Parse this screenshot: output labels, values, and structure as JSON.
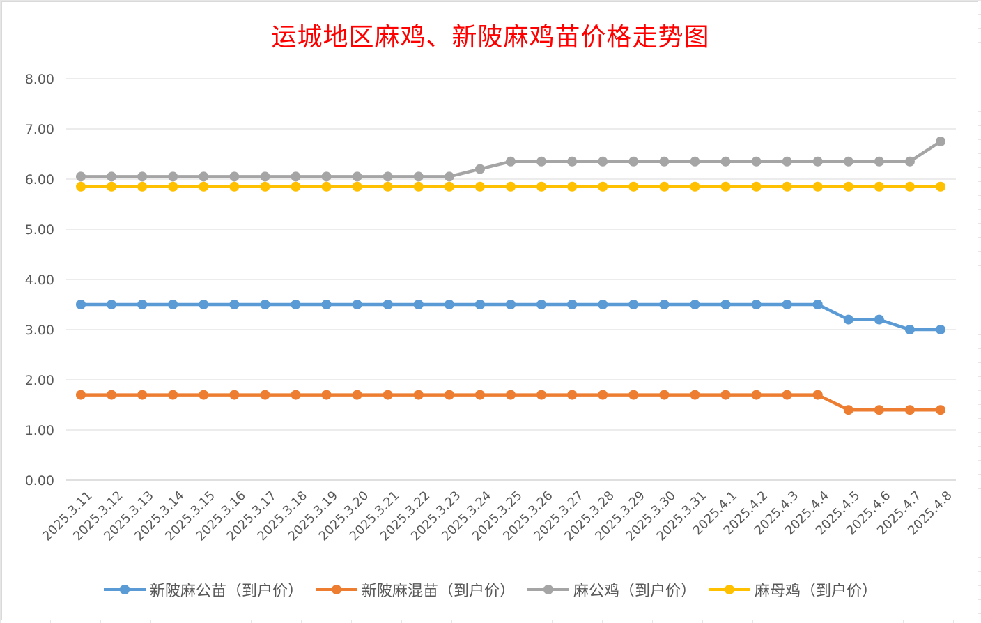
{
  "chart_data": {
    "type": "line",
    "title": "运城地区麻鸡、新陂麻鸡苗价格走势图",
    "xlabel": "",
    "ylabel": "",
    "ylim": [
      0,
      8
    ],
    "y_ticks": [
      "0.00",
      "1.00",
      "2.00",
      "3.00",
      "4.00",
      "5.00",
      "6.00",
      "7.00",
      "8.00"
    ],
    "grid": "horizontal",
    "legend_position": "bottom",
    "categories": [
      "2025.3.11",
      "2025.3.12",
      "2025.3.13",
      "2025.3.14",
      "2025.3.15",
      "2025.3.16",
      "2025.3.17",
      "2025.3.18",
      "2025.3.19",
      "2025.3.20",
      "2025.3.21",
      "2025.3.22",
      "2025.3.23",
      "2025.3.24",
      "2025.3.25",
      "2025.3.26",
      "2025.3.27",
      "2025.3.28",
      "2025.3.29",
      "2025.3.30",
      "2025.3.31",
      "2025.4.1",
      "2025.4.2",
      "2025.4.3",
      "2025.4.4",
      "2025.4.5",
      "2025.4.6",
      "2025.4.7",
      "2025.4.8"
    ],
    "series": [
      {
        "name": "新陂麻公苗（到户价）",
        "color": "#5b9bd5",
        "values": [
          3.5,
          3.5,
          3.5,
          3.5,
          3.5,
          3.5,
          3.5,
          3.5,
          3.5,
          3.5,
          3.5,
          3.5,
          3.5,
          3.5,
          3.5,
          3.5,
          3.5,
          3.5,
          3.5,
          3.5,
          3.5,
          3.5,
          3.5,
          3.5,
          3.5,
          3.2,
          3.2,
          3.0,
          3.0
        ]
      },
      {
        "name": "新陂麻混苗（到户价）",
        "color": "#ed7d31",
        "values": [
          1.7,
          1.7,
          1.7,
          1.7,
          1.7,
          1.7,
          1.7,
          1.7,
          1.7,
          1.7,
          1.7,
          1.7,
          1.7,
          1.7,
          1.7,
          1.7,
          1.7,
          1.7,
          1.7,
          1.7,
          1.7,
          1.7,
          1.7,
          1.7,
          1.7,
          1.4,
          1.4,
          1.4,
          1.4
        ]
      },
      {
        "name": "麻公鸡（到户价）",
        "color": "#a5a5a5",
        "values": [
          6.05,
          6.05,
          6.05,
          6.05,
          6.05,
          6.05,
          6.05,
          6.05,
          6.05,
          6.05,
          6.05,
          6.05,
          6.05,
          6.2,
          6.35,
          6.35,
          6.35,
          6.35,
          6.35,
          6.35,
          6.35,
          6.35,
          6.35,
          6.35,
          6.35,
          6.35,
          6.35,
          6.35,
          6.75
        ]
      },
      {
        "name": "麻母鸡（到户价）",
        "color": "#ffc000",
        "values": [
          5.85,
          5.85,
          5.85,
          5.85,
          5.85,
          5.85,
          5.85,
          5.85,
          5.85,
          5.85,
          5.85,
          5.85,
          5.85,
          5.85,
          5.85,
          5.85,
          5.85,
          5.85,
          5.85,
          5.85,
          5.85,
          5.85,
          5.85,
          5.85,
          5.85,
          5.85,
          5.85,
          5.85,
          5.85
        ]
      }
    ]
  }
}
